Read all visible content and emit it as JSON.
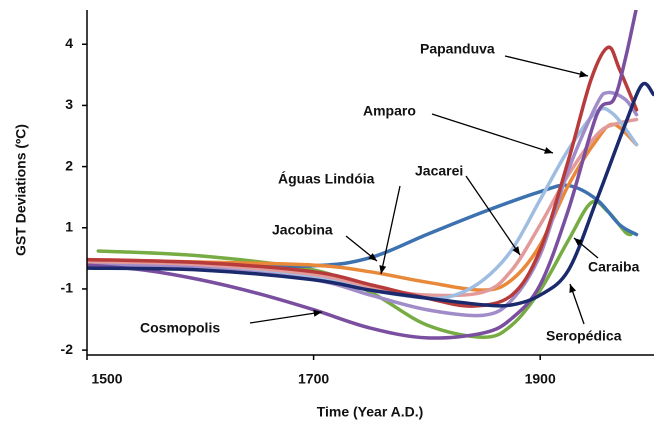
{
  "chart_data": {
    "type": "line",
    "xlabel": "Time (Year A.D.)",
    "ylabel": "GST Deviations (ºC)",
    "xlim": [
      1500,
      2000
    ],
    "xticks": [
      1500,
      1700,
      1900
    ],
    "ylim": [
      -1.08,
      4.56
    ],
    "yticks": [
      4,
      3,
      2,
      1,
      {
        "value": 0,
        "label": "-1"
      },
      {
        "value": -1,
        "label": "-2"
      }
    ],
    "series": [
      {
        "name": "Caraiba",
        "color": "#77ab43",
        "x": [
          1510,
          1600,
          1700,
          1750,
          1800,
          1850,
          1875,
          1900,
          1925,
          1945,
          1960,
          1975,
          1980
        ],
        "values": [
          0.62,
          0.54,
          0.31,
          -0.05,
          -0.59,
          -0.79,
          -0.59,
          -0.02,
          0.8,
          1.41,
          1.26,
          0.93,
          0.89
        ]
      },
      {
        "name": "Jacobina",
        "color": "#3d72b0",
        "x": [
          1500,
          1600,
          1700,
          1750,
          1800,
          1850,
          1900,
          1925,
          1950,
          1970,
          1985
        ],
        "values": [
          0.44,
          0.39,
          0.38,
          0.51,
          0.89,
          1.26,
          1.59,
          1.69,
          1.46,
          1.05,
          0.89
        ]
      },
      {
        "name": "Águas Lindóia",
        "color": "#e8893a",
        "x": [
          1500,
          1600,
          1700,
          1750,
          1800,
          1850,
          1875,
          1900,
          1925,
          1950,
          1965,
          1985
        ],
        "values": [
          0.48,
          0.44,
          0.39,
          0.28,
          0.11,
          -0.02,
          0.15,
          0.72,
          1.7,
          2.44,
          2.69,
          2.36
        ]
      },
      {
        "name": "Jacarei",
        "color": "#e39a9a",
        "x": [
          1500,
          1600,
          1700,
          1750,
          1800,
          1850,
          1875,
          1900,
          1925,
          1950,
          1965,
          1985
        ],
        "values": [
          0.44,
          0.39,
          0.23,
          0.03,
          -0.1,
          -0.05,
          0.31,
          1.05,
          1.87,
          2.52,
          2.69,
          2.77
        ]
      },
      {
        "name": "Amparo",
        "color": "#9fbde0",
        "x": [
          1500,
          1600,
          1700,
          1750,
          1800,
          1825,
          1850,
          1875,
          1900,
          1925,
          1950,
          1965,
          1985
        ],
        "values": [
          0.39,
          0.34,
          0.18,
          -0.02,
          -0.15,
          -0.1,
          0.15,
          0.64,
          1.46,
          2.28,
          2.9,
          2.85,
          2.36
        ]
      },
      {
        "color": "#a08cc8",
        "x": [
          1500,
          1600,
          1700,
          1750,
          1800,
          1850,
          1875,
          1900,
          1925,
          1950,
          1960,
          1975,
          1985
        ],
        "values": [
          0.39,
          0.34,
          0.15,
          -0.1,
          -0.34,
          -0.43,
          -0.18,
          0.56,
          1.95,
          3.02,
          3.21,
          3.1,
          2.85
        ]
      },
      {
        "name": "Papanduva",
        "color": "#b83b3b",
        "x": [
          1500,
          1600,
          1700,
          1750,
          1800,
          1840,
          1875,
          1900,
          1925,
          1945,
          1960,
          1970,
          1985
        ],
        "values": [
          0.48,
          0.43,
          0.28,
          0.07,
          -0.15,
          -0.28,
          -0.1,
          0.64,
          2.11,
          3.43,
          3.95,
          3.59,
          2.93
        ]
      },
      {
        "name": "Cosmopolis",
        "color": "#7a4fa0",
        "x": [
          1500,
          1550,
          1600,
          1650,
          1700,
          1750,
          1800,
          1850,
          1875,
          1900,
          1925,
          1950,
          1965,
          1975,
          1985
        ],
        "values": [
          0.39,
          0.31,
          0.15,
          -0.07,
          -0.34,
          -0.64,
          -0.8,
          -0.72,
          -0.48,
          0.07,
          1.3,
          2.85,
          3.1,
          3.75,
          4.6
        ]
      },
      {
        "name": "Seropédica",
        "color": "#1a2a6c",
        "x": [
          1500,
          1600,
          1700,
          1750,
          1800,
          1850,
          1875,
          1900,
          1925,
          1950,
          1975,
          1990,
          2000
        ],
        "values": [
          0.34,
          0.31,
          0.15,
          -0.02,
          -0.15,
          -0.26,
          -0.26,
          -0.1,
          0.31,
          1.46,
          2.69,
          3.34,
          3.18
        ]
      }
    ]
  }
}
